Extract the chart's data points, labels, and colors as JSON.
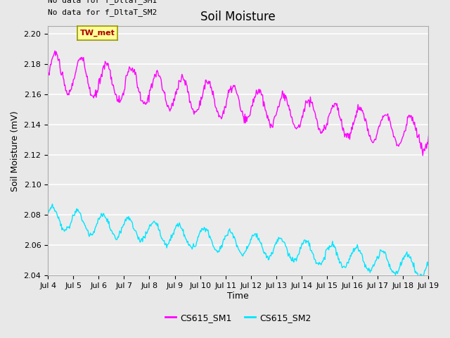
{
  "title": "Soil Moisture",
  "ylabel": "Soil Moisture (mV)",
  "xlabel": "Time",
  "annotations": [
    "No data for f_DltaT_SM1",
    "No data for f_DltaT_SM2"
  ],
  "legend_label1": "CS615_SM1",
  "legend_label2": "CS615_SM2",
  "legend_color1": "#ff00ff",
  "legend_color2": "#00e5ff",
  "ylim": [
    2.04,
    2.205
  ],
  "yticks": [
    2.04,
    2.06,
    2.08,
    2.1,
    2.12,
    2.14,
    2.16,
    2.18,
    2.2
  ],
  "xtick_labels": [
    "Jul 4",
    "Jul 5",
    "Jul 6",
    "Jul 7",
    "Jul 8",
    "Jul 9",
    "Jul 10",
    "Jul 11",
    "Jul 12",
    "Jul 13",
    "Jul 14",
    "Jul 15",
    "Jul 16",
    "Jul 17",
    "Jul 18",
    "Jul 19"
  ],
  "background_color": "#e8e8e8",
  "plot_bg_color": "#ebebeb",
  "tw_met_box_color": "#ffff99",
  "tw_met_text_color": "#aa0000",
  "title_fontsize": 12,
  "label_fontsize": 9,
  "tick_fontsize": 8,
  "annot_fontsize": 8
}
